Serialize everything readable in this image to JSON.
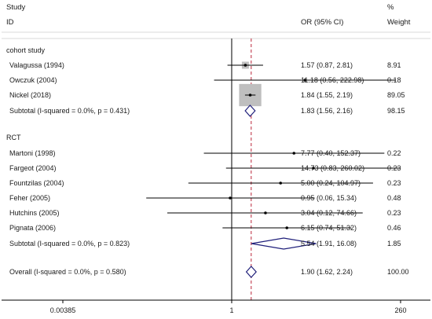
{
  "chart_data": {
    "type": "forest",
    "x_scale": "log",
    "x_ticks": [
      "0.00385",
      "1",
      "260"
    ],
    "x_tick_values": [
      0.00385,
      1,
      260
    ],
    "xlim": [
      0.00385,
      260
    ],
    "null_line": 1,
    "overall_effect_line": 1.9,
    "headers": {
      "col1_top": "Study",
      "col1_bottom": "ID",
      "col2": "OR (95% CI)",
      "col3_top": "%",
      "col3_bottom": "Weight"
    },
    "groups": [
      {
        "label": "cohort study",
        "studies": [
          {
            "id": "Valagussa (1994)",
            "or": 1.57,
            "lo": 0.87,
            "hi": 2.81,
            "ci_text": "1.57 (0.87, 2.81)",
            "weight": "8.91"
          },
          {
            "id": "Owczuk (2004)",
            "or": 11.18,
            "lo": 0.56,
            "hi": 222.98,
            "ci_text": "11.18 (0.56, 222.98)",
            "weight": "0.18"
          },
          {
            "id": "Nickel (2018)",
            "or": 1.84,
            "lo": 1.55,
            "hi": 2.19,
            "ci_text": "1.84 (1.55, 2.19)",
            "weight": "89.05"
          }
        ],
        "subtotal": {
          "label": "Subtotal  (I-squared = 0.0%, p = 0.431)",
          "or": 1.83,
          "lo": 1.56,
          "hi": 2.16,
          "ci_text": "1.83 (1.56, 2.16)",
          "weight": "98.15"
        }
      },
      {
        "label": "RCT",
        "studies": [
          {
            "id": "Martoni (1998)",
            "or": 7.77,
            "lo": 0.4,
            "hi": 152.37,
            "ci_text": "7.77 (0.40, 152.37)",
            "weight": "0.22"
          },
          {
            "id": "Fargeot (2004)",
            "or": 14.73,
            "lo": 0.83,
            "hi": 260.02,
            "ci_text": "14.73 (0.83, 260.02)",
            "weight": "0.23"
          },
          {
            "id": "Fountzilas (2004)",
            "or": 5.0,
            "lo": 0.24,
            "hi": 104.97,
            "ci_text": "5.00 (0.24, 104.97)",
            "weight": "0.23"
          },
          {
            "id": "Feher (2005)",
            "or": 0.95,
            "lo": 0.06,
            "hi": 15.34,
            "ci_text": "0.95 (0.06, 15.34)",
            "weight": "0.48"
          },
          {
            "id": "Hutchins (2005)",
            "or": 3.04,
            "lo": 0.12,
            "hi": 74.66,
            "ci_text": "3.04 (0.12, 74.66)",
            "weight": "0.23"
          },
          {
            "id": "Pignata (2006)",
            "or": 6.15,
            "lo": 0.74,
            "hi": 51.32,
            "ci_text": "6.15 (0.74, 51.32)",
            "weight": "0.46"
          }
        ],
        "subtotal": {
          "label": "Subtotal  (I-squared = 0.0%, p = 0.823)",
          "or": 5.54,
          "lo": 1.91,
          "hi": 16.08,
          "ci_text": "5.54 (1.91, 16.08)",
          "weight": "1.85"
        }
      }
    ],
    "overall": {
      "label": "Overall  (I-squared = 0.0%, p = 0.580)",
      "or": 1.9,
      "lo": 1.62,
      "hi": 2.24,
      "ci_text": "1.90 (1.62, 2.24)",
      "weight": "100.00"
    },
    "colors": {
      "text": "#1a1a1a",
      "line": "#000000",
      "weight_box": "#bfbfbf",
      "diamond": "#1f1f7a",
      "effect_line": "#c0394b",
      "rule": "#d9d9d9"
    }
  }
}
